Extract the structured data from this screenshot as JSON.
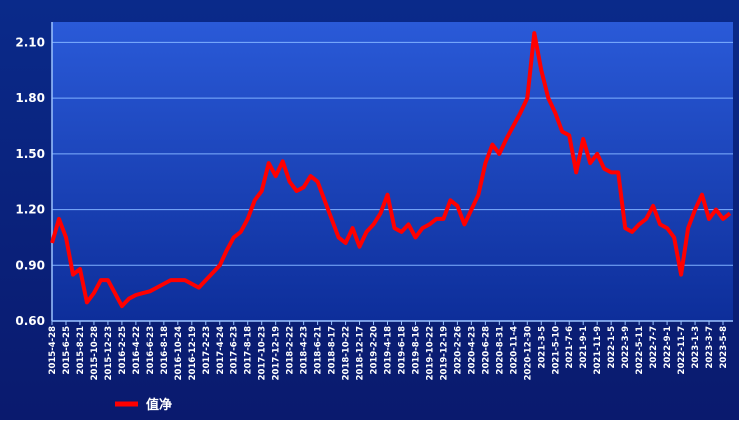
{
  "chart_data": {
    "type": "line",
    "categories": [
      "2015-4-28",
      null,
      "2015-6-25",
      null,
      "2015-8-21",
      null,
      "2015-10-28",
      null,
      "2015-12-23",
      null,
      "2016-2-25",
      null,
      "2016-4-22",
      null,
      "2016-6-23",
      null,
      "2016-8-18",
      null,
      "2016-10-24",
      null,
      "2016-12-19",
      null,
      "2017-2-23",
      null,
      "2017-4-24",
      null,
      "2017-6-23",
      null,
      "2017-8-18",
      null,
      "2017-10-23",
      null,
      "2017-12-19",
      null,
      "2018-2-22",
      null,
      "2018-4-23",
      null,
      "2018-6-21",
      null,
      "2018-8-17",
      null,
      "2018-10-22",
      null,
      "2018-12-17",
      null,
      "2019-2-20",
      null,
      "2019-4-18",
      null,
      "2019-6-18",
      null,
      "2019-8-16",
      null,
      "2019-10-22",
      null,
      "2019-12-19",
      null,
      "2020-2-26",
      null,
      "2020-4-23",
      null,
      "2020-6-28",
      null,
      "2020-8-31",
      null,
      "2020-11-4",
      null,
      "2020-12-30",
      null,
      "2021-3-5",
      null,
      "2021-5-10",
      null,
      "2021-7-6",
      null,
      "2021-9-1",
      null,
      "2021-11-9",
      null,
      "2022-1-5",
      null,
      "2022-3-9",
      null,
      "2022-5-11",
      null,
      "2022-7-7",
      null,
      "2022-9-1",
      null,
      "2022-11-7",
      null,
      "2023-1-3",
      null,
      "2023-3-7",
      null,
      "2023-5-8",
      null
    ],
    "series": [
      {
        "name": "值净",
        "color": "#ff0000",
        "values": [
          1.02,
          1.15,
          1.05,
          0.85,
          0.88,
          0.7,
          0.75,
          0.82,
          0.82,
          0.75,
          0.68,
          0.72,
          0.74,
          0.75,
          0.76,
          0.78,
          0.8,
          0.82,
          0.82,
          0.82,
          0.8,
          0.78,
          0.82,
          0.86,
          0.9,
          0.98,
          1.05,
          1.08,
          1.15,
          1.25,
          1.3,
          1.45,
          1.38,
          1.46,
          1.35,
          1.3,
          1.32,
          1.38,
          1.35,
          1.25,
          1.15,
          1.05,
          1.02,
          1.1,
          1.0,
          1.08,
          1.12,
          1.18,
          1.28,
          1.1,
          1.08,
          1.12,
          1.05,
          1.1,
          1.12,
          1.15,
          1.15,
          1.25,
          1.22,
          1.12,
          1.2,
          1.28,
          1.45,
          1.55,
          1.5,
          1.58,
          1.65,
          1.72,
          1.8,
          2.15,
          1.95,
          1.8,
          1.72,
          1.62,
          1.6,
          1.4,
          1.58,
          1.45,
          1.5,
          1.42,
          1.4,
          1.4,
          1.1,
          1.08,
          1.12,
          1.15,
          1.22,
          1.12,
          1.1,
          1.05,
          0.85,
          1.1,
          1.2,
          1.28,
          1.15,
          1.2,
          1.15,
          1.18
        ]
      }
    ],
    "ylim": [
      0.6,
      2.21
    ],
    "yticks": [
      {
        "value": 0.6,
        "label": "0.60"
      },
      {
        "value": 0.9,
        "label": "0.90"
      },
      {
        "value": 1.2,
        "label": "1.20"
      },
      {
        "value": 1.5,
        "label": "1.50"
      },
      {
        "value": 1.8,
        "label": "1.80"
      },
      {
        "value": 2.1,
        "label": "2.10"
      }
    ],
    "grid": true,
    "legend": "bottom-left"
  }
}
